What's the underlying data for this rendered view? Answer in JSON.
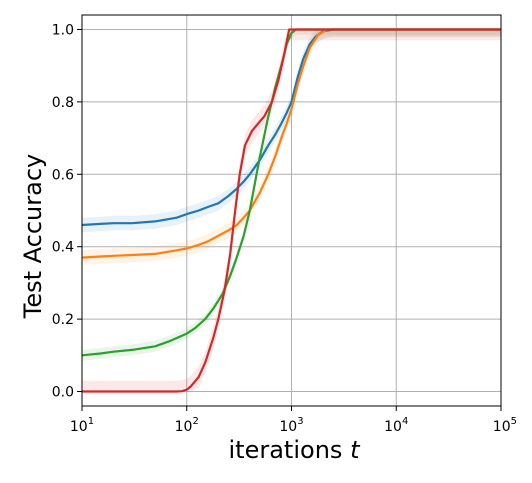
{
  "chart_data": {
    "type": "line",
    "title": "",
    "xlabel": "iterations",
    "xlabel_var": "t",
    "ylabel": "Test Accuracy",
    "xscale": "log",
    "xlim": [
      10,
      100000
    ],
    "ylim": [
      -0.04,
      1.04
    ],
    "grid": true,
    "legend": "none",
    "x_ticks": [
      {
        "base": "10",
        "exp": "1",
        "value": 10
      },
      {
        "base": "10",
        "exp": "2",
        "value": 100
      },
      {
        "base": "10",
        "exp": "3",
        "value": 1000
      },
      {
        "base": "10",
        "exp": "4",
        "value": 10000
      },
      {
        "base": "10",
        "exp": "5",
        "value": 100000
      }
    ],
    "y_ticks": [
      "0.0",
      "0.2",
      "0.4",
      "0.6",
      "0.8",
      "1.0"
    ],
    "series": [
      {
        "color": "#1f77b4",
        "band": 0.02,
        "points": [
          [
            10,
            0.46
          ],
          [
            15,
            0.463
          ],
          [
            20,
            0.465
          ],
          [
            30,
            0.465
          ],
          [
            50,
            0.47
          ],
          [
            80,
            0.48
          ],
          [
            100,
            0.49
          ],
          [
            130,
            0.5
          ],
          [
            160,
            0.51
          ],
          [
            200,
            0.52
          ],
          [
            250,
            0.54
          ],
          [
            300,
            0.56
          ],
          [
            350,
            0.58
          ],
          [
            400,
            0.6
          ],
          [
            500,
            0.64
          ],
          [
            600,
            0.68
          ],
          [
            700,
            0.71
          ],
          [
            800,
            0.74
          ],
          [
            900,
            0.77
          ],
          [
            1000,
            0.8
          ],
          [
            1150,
            0.87
          ],
          [
            1300,
            0.92
          ],
          [
            1500,
            0.96
          ],
          [
            1700,
            0.98
          ],
          [
            2000,
            0.995
          ],
          [
            2500,
            1.0
          ],
          [
            3000,
            1.0
          ],
          [
            100000,
            1.0
          ]
        ]
      },
      {
        "color": "#ff7f0e",
        "band": 0.02,
        "points": [
          [
            10,
            0.37
          ],
          [
            15,
            0.373
          ],
          [
            20,
            0.375
          ],
          [
            30,
            0.377
          ],
          [
            50,
            0.38
          ],
          [
            80,
            0.39
          ],
          [
            100,
            0.395
          ],
          [
            130,
            0.405
          ],
          [
            160,
            0.415
          ],
          [
            200,
            0.43
          ],
          [
            250,
            0.445
          ],
          [
            300,
            0.46
          ],
          [
            350,
            0.48
          ],
          [
            400,
            0.5
          ],
          [
            500,
            0.55
          ],
          [
            600,
            0.6
          ],
          [
            700,
            0.65
          ],
          [
            800,
            0.7
          ],
          [
            900,
            0.74
          ],
          [
            1000,
            0.78
          ],
          [
            1150,
            0.85
          ],
          [
            1300,
            0.9
          ],
          [
            1500,
            0.95
          ],
          [
            1800,
            0.985
          ],
          [
            2200,
            1.0
          ],
          [
            2500,
            1.0
          ],
          [
            100000,
            1.0
          ]
        ]
      },
      {
        "color": "#2ca02c",
        "band": 0.015,
        "points": [
          [
            10,
            0.1
          ],
          [
            15,
            0.105
          ],
          [
            20,
            0.11
          ],
          [
            30,
            0.115
          ],
          [
            50,
            0.125
          ],
          [
            70,
            0.14
          ],
          [
            100,
            0.16
          ],
          [
            120,
            0.175
          ],
          [
            150,
            0.2
          ],
          [
            180,
            0.23
          ],
          [
            220,
            0.27
          ],
          [
            260,
            0.32
          ],
          [
            300,
            0.37
          ],
          [
            350,
            0.43
          ],
          [
            400,
            0.5
          ],
          [
            450,
            0.58
          ],
          [
            500,
            0.65
          ],
          [
            600,
            0.76
          ],
          [
            700,
            0.84
          ],
          [
            800,
            0.9
          ],
          [
            850,
            0.93
          ],
          [
            900,
            0.96
          ],
          [
            1000,
            0.99
          ],
          [
            1100,
            1.0
          ],
          [
            100000,
            1.0
          ]
        ]
      },
      {
        "color": "#d62728",
        "band": 0.03,
        "points": [
          [
            10,
            0.0
          ],
          [
            80,
            0.0
          ],
          [
            90,
            0.001
          ],
          [
            100,
            0.005
          ],
          [
            110,
            0.015
          ],
          [
            130,
            0.04
          ],
          [
            150,
            0.08
          ],
          [
            180,
            0.15
          ],
          [
            200,
            0.2
          ],
          [
            230,
            0.28
          ],
          [
            260,
            0.38
          ],
          [
            290,
            0.5
          ],
          [
            320,
            0.6
          ],
          [
            360,
            0.68
          ],
          [
            420,
            0.72
          ],
          [
            480,
            0.74
          ],
          [
            550,
            0.76
          ],
          [
            650,
            0.8
          ],
          [
            750,
            0.86
          ],
          [
            850,
            0.93
          ],
          [
            920,
            0.98
          ],
          [
            950,
            1.0
          ],
          [
            100000,
            1.0
          ]
        ]
      }
    ]
  }
}
